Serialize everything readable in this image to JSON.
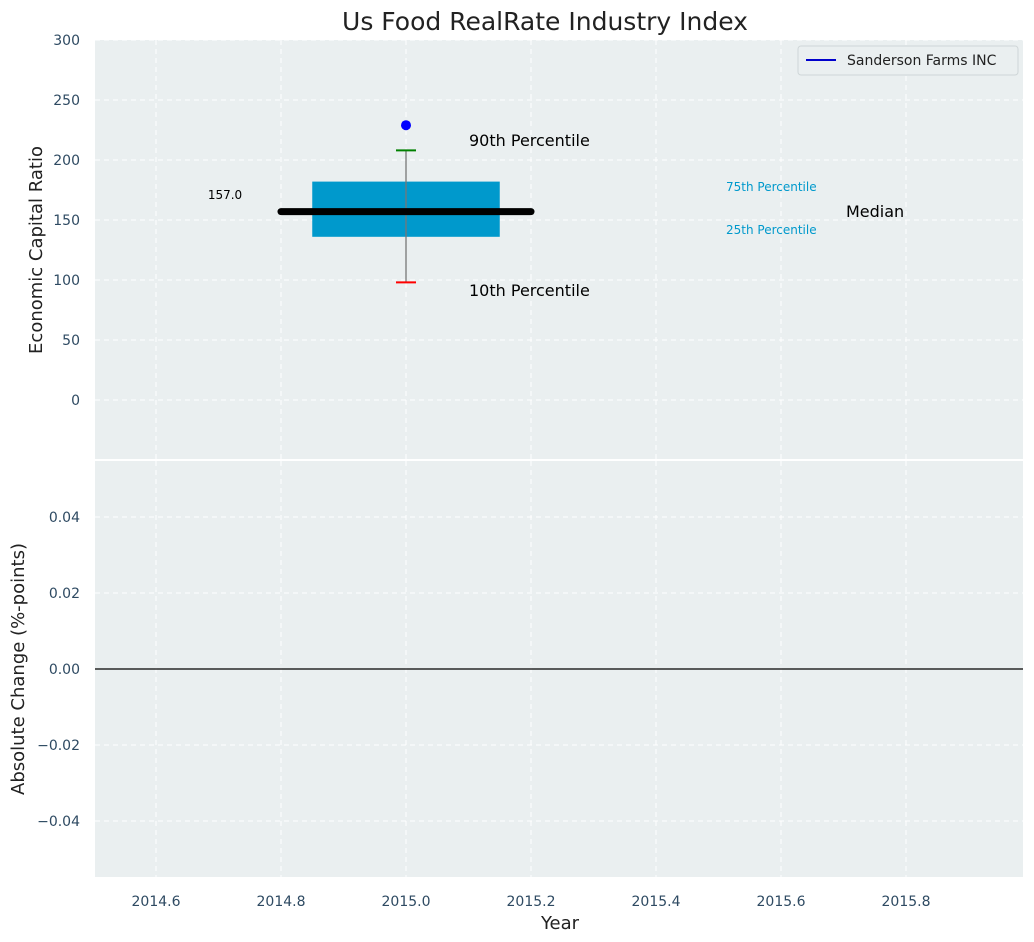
{
  "chart_data": [
    {
      "type": "box",
      "title": "Us Food RealRate Industry Index",
      "xlabel": "",
      "ylabel": "Economic Capital Ratio",
      "ylim": [
        -50,
        300
      ],
      "yticks": [
        0,
        50,
        100,
        150,
        200,
        250,
        300
      ],
      "ytick_labels": [
        "0",
        "50",
        "100",
        "150",
        "200",
        "250",
        "300"
      ],
      "xlim": [
        2014.5,
        2016.0
      ],
      "grid": true,
      "legend": {
        "position": "top-right",
        "entries": [
          {
            "name": "Sanderson Farms INC",
            "color": "#0000cc"
          }
        ]
      },
      "box": {
        "x": 2015.0,
        "p10": 98,
        "p25": 136,
        "median": 157,
        "p75": 182,
        "p90": 208,
        "width": 0.3
      },
      "median_line": {
        "x_start": 2014.8,
        "x_end": 2015.2,
        "value": 157
      },
      "company_point": {
        "x": 2015.0,
        "y": 229,
        "color": "#0000ff"
      },
      "annotations": {
        "median_value": "157.0",
        "p90": "90th Percentile",
        "p10": "10th Percentile",
        "p75": "75th Percentile",
        "p25": "25th Percentile",
        "median": "Median"
      },
      "colors": {
        "box": "#0099cc",
        "p90_cap": "#008000",
        "p10_cap": "#ff0000",
        "median": "#000000",
        "background": "#eaeff0"
      }
    },
    {
      "type": "line",
      "title": "",
      "xlabel": "Year",
      "ylabel": "Absolute Change (%-points)",
      "ylim": [
        -0.055,
        0.055
      ],
      "yticks": [
        -0.04,
        -0.02,
        0.0,
        0.02,
        0.04
      ],
      "ytick_labels": [
        "−0.04",
        "−0.02",
        "0.00",
        "0.02",
        "0.04"
      ],
      "xlim": [
        2014.5,
        2016.0
      ],
      "xticks": [
        2014.6,
        2014.8,
        2015.0,
        2015.2,
        2015.4,
        2015.6,
        2015.8
      ],
      "xtick_labels": [
        "2014.6",
        "2014.8",
        "2015.0",
        "2015.2",
        "2015.4",
        "2015.6",
        "2015.8"
      ],
      "grid": true,
      "reference_line": {
        "y": 0.0,
        "color": "#000000"
      },
      "series": []
    }
  ]
}
